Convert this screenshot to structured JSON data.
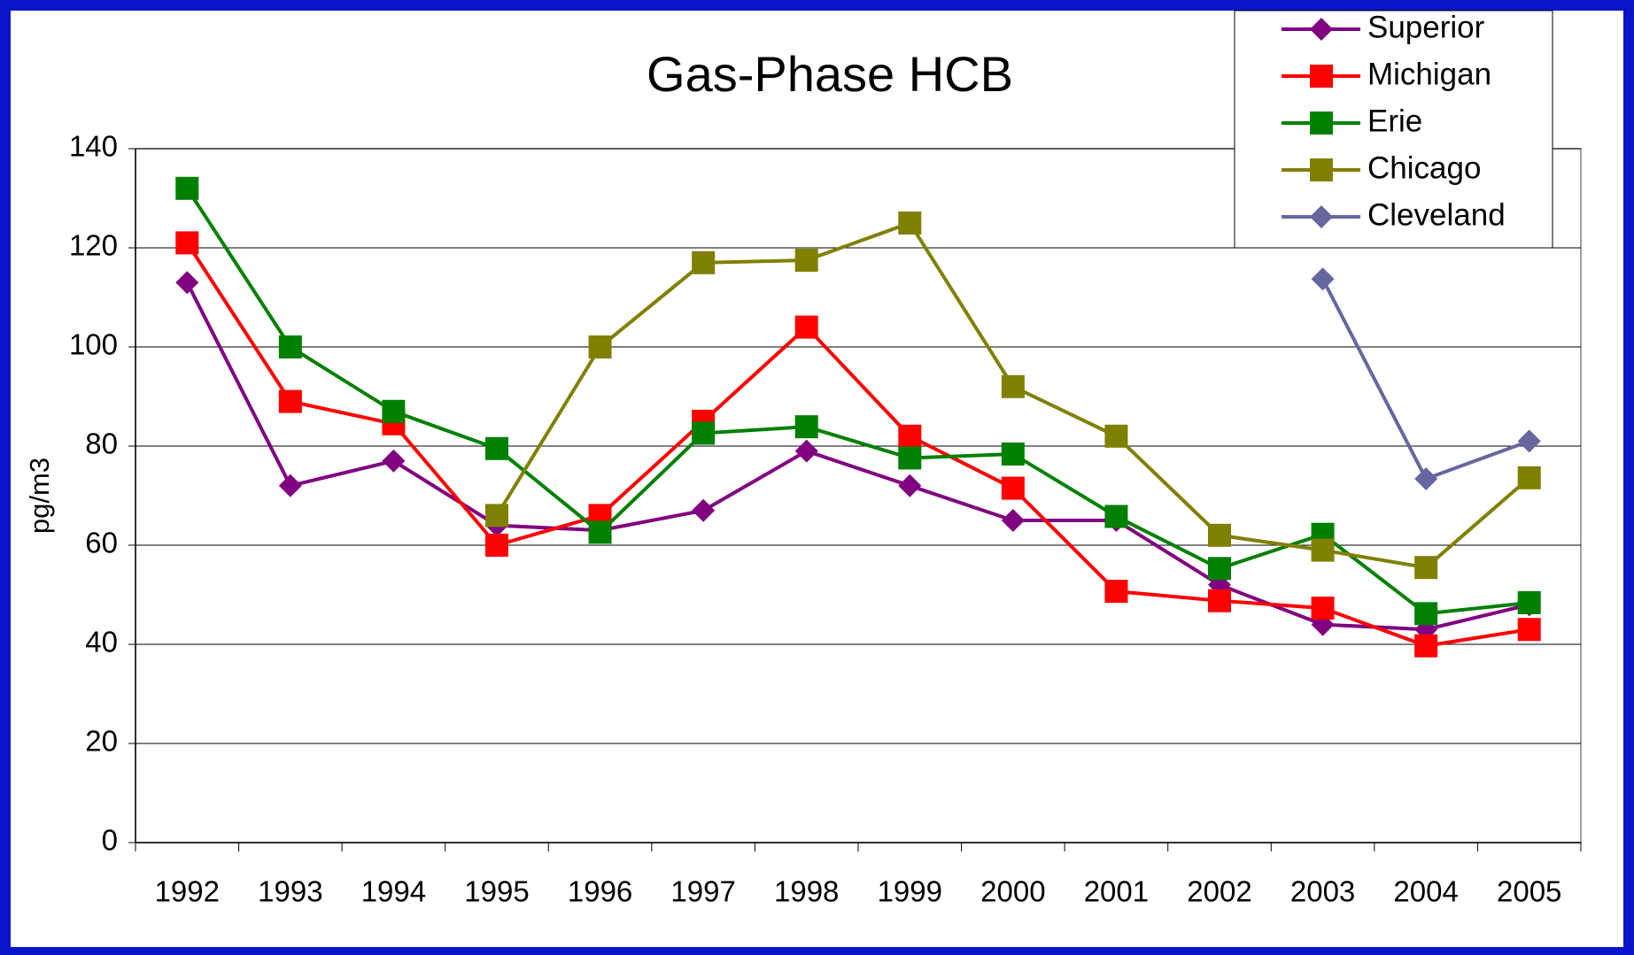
{
  "chart_data": {
    "type": "line",
    "title": "Gas-Phase HCB",
    "y_label": "pg/m3",
    "categories": [
      "1992",
      "1993",
      "1994",
      "1995",
      "1996",
      "1997",
      "1998",
      "1999",
      "2000",
      "2001",
      "2002",
      "2003",
      "2004",
      "2005"
    ],
    "series": [
      {
        "name": "Superior",
        "color": "#800080",
        "marker": "diamond",
        "values": [
          113,
          72,
          77,
          64,
          63,
          67,
          79,
          72,
          65,
          65,
          52,
          44,
          43,
          48
        ]
      },
      {
        "name": "Michigan",
        "color": "#ff0000",
        "marker": "square",
        "values": [
          121,
          89,
          84.5,
          60,
          66,
          85,
          104,
          82,
          71.5,
          50.7,
          48.8,
          47.3,
          39.7,
          43
        ]
      },
      {
        "name": "Erie",
        "color": "#008000",
        "marker": "square",
        "values": [
          132,
          100,
          87,
          79.5,
          62.6,
          82.6,
          83.9,
          77.6,
          78.4,
          65.8,
          55.3,
          62.2,
          46.2,
          48.4
        ]
      },
      {
        "name": "Chicago",
        "color": "#808000",
        "marker": "square",
        "values": [
          null,
          null,
          null,
          66,
          100,
          117,
          117.5,
          125,
          92,
          82,
          62,
          59,
          55.5,
          73.6
        ]
      },
      {
        "name": "Cleveland",
        "color": "#6666a0",
        "marker": "diamond",
        "values": [
          null,
          null,
          null,
          null,
          null,
          null,
          null,
          null,
          null,
          null,
          null,
          113.7,
          73.4,
          81
        ]
      }
    ],
    "ylim": [
      0,
      140
    ],
    "yticks": [
      0,
      20,
      40,
      60,
      80,
      100,
      120,
      140
    ],
    "grid": true,
    "legend": "top-right"
  }
}
